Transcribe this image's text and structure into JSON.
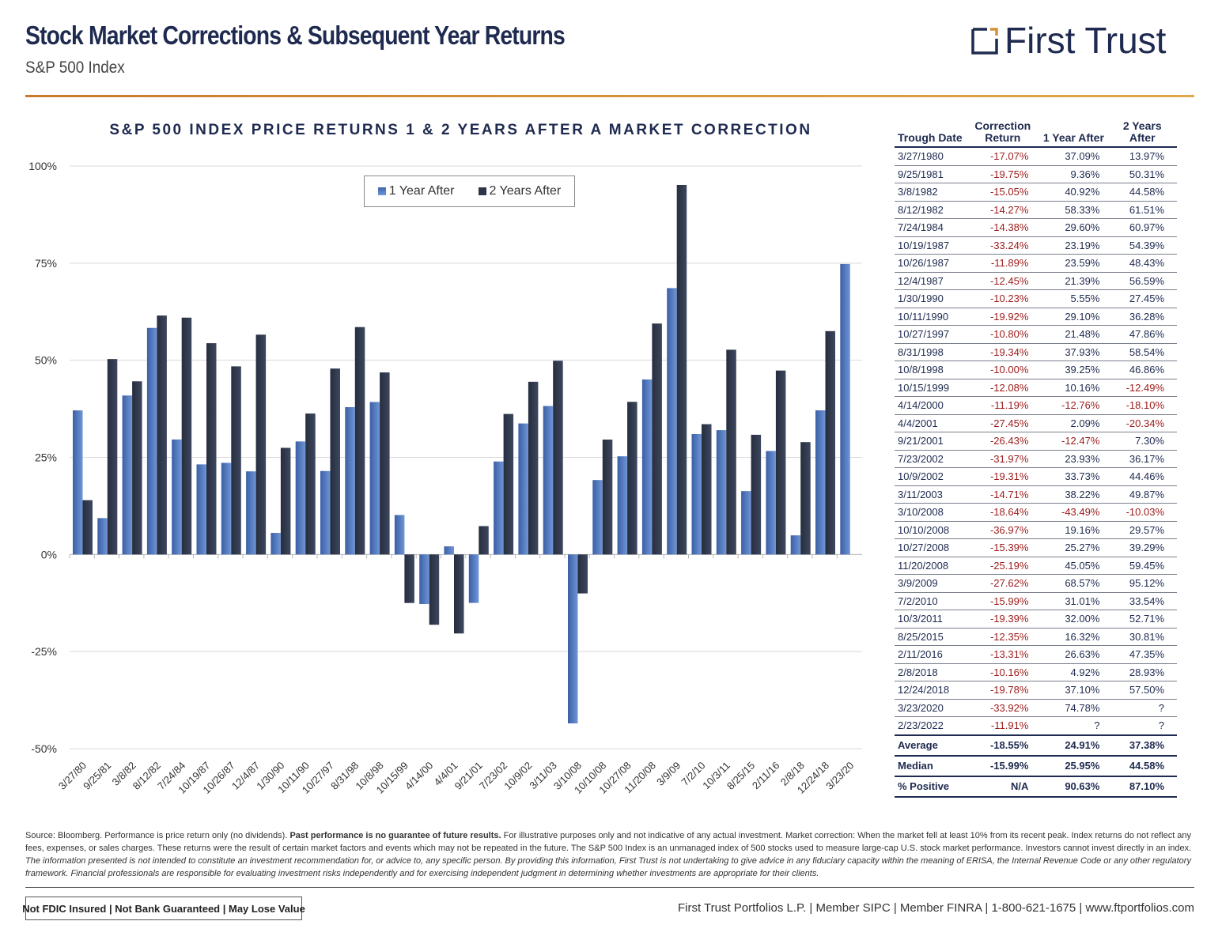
{
  "header": {
    "title": "Stock Market Corrections & Subsequent Year Returns",
    "subtitle": "S&P 500 Index",
    "logo_text": "First Trust"
  },
  "colors": {
    "navy": "#1e2a4f",
    "accent": "#d4913a",
    "one_year": "#4a6fb5",
    "two_year": "#2c3447",
    "negative": "#9c1a1a"
  },
  "chart_data": {
    "type": "bar",
    "title": "S&P 500 INDEX PRICE RETURNS 1 & 2 YEARS AFTER A MARKET CORRECTION",
    "categories": [
      "3/27/80",
      "9/25/81",
      "3/8/82",
      "8/12/82",
      "7/24/84",
      "10/19/87",
      "10/26/87",
      "12/4/87",
      "1/30/90",
      "10/11/90",
      "10/27/97",
      "8/31/98",
      "10/8/98",
      "10/15/99",
      "4/14/00",
      "4/4/01",
      "9/21/01",
      "7/23/02",
      "10/9/02",
      "3/11/03",
      "3/10/08",
      "10/10/08",
      "10/27/08",
      "11/20/08",
      "3/9/09",
      "7/2/10",
      "10/3/11",
      "8/25/15",
      "2/11/16",
      "2/8/18",
      "12/24/18",
      "3/23/20"
    ],
    "series": [
      {
        "name": "1 Year After",
        "values": [
          37.09,
          9.36,
          40.92,
          58.33,
          29.6,
          23.19,
          23.59,
          21.39,
          5.55,
          29.1,
          21.48,
          37.93,
          39.25,
          10.16,
          -12.76,
          2.09,
          -12.47,
          23.93,
          33.73,
          38.22,
          -43.49,
          19.16,
          25.27,
          45.05,
          68.57,
          31.01,
          32.0,
          16.32,
          26.63,
          4.92,
          37.1,
          74.78
        ]
      },
      {
        "name": "2 Years After",
        "values": [
          13.97,
          50.31,
          44.58,
          61.51,
          60.97,
          54.39,
          48.43,
          56.59,
          27.45,
          36.28,
          47.86,
          58.54,
          46.86,
          -12.49,
          -18.1,
          -20.34,
          7.3,
          36.17,
          44.46,
          49.87,
          -10.03,
          29.57,
          39.29,
          59.45,
          95.12,
          33.54,
          52.71,
          30.81,
          47.35,
          28.93,
          57.5,
          null
        ]
      }
    ],
    "yticks": [
      "100%",
      "75%",
      "50%",
      "25%",
      "0%",
      "-25%",
      "-50%"
    ],
    "ylim": [
      -50,
      100
    ],
    "grid": true,
    "legend": "top-left"
  },
  "table": {
    "headers": [
      "Trough Date",
      "Correction Return",
      "1 Year After",
      "2 Years After"
    ],
    "rows": [
      [
        "3/27/1980",
        "-17.07%",
        "37.09%",
        "13.97%"
      ],
      [
        "9/25/1981",
        "-19.75%",
        "9.36%",
        "50.31%"
      ],
      [
        "3/8/1982",
        "-15.05%",
        "40.92%",
        "44.58%"
      ],
      [
        "8/12/1982",
        "-14.27%",
        "58.33%",
        "61.51%"
      ],
      [
        "7/24/1984",
        "-14.38%",
        "29.60%",
        "60.97%"
      ],
      [
        "10/19/1987",
        "-33.24%",
        "23.19%",
        "54.39%"
      ],
      [
        "10/26/1987",
        "-11.89%",
        "23.59%",
        "48.43%"
      ],
      [
        "12/4/1987",
        "-12.45%",
        "21.39%",
        "56.59%"
      ],
      [
        "1/30/1990",
        "-10.23%",
        "5.55%",
        "27.45%"
      ],
      [
        "10/11/1990",
        "-19.92%",
        "29.10%",
        "36.28%"
      ],
      [
        "10/27/1997",
        "-10.80%",
        "21.48%",
        "47.86%"
      ],
      [
        "8/31/1998",
        "-19.34%",
        "37.93%",
        "58.54%"
      ],
      [
        "10/8/1998",
        "-10.00%",
        "39.25%",
        "46.86%"
      ],
      [
        "10/15/1999",
        "-12.08%",
        "10.16%",
        "-12.49%"
      ],
      [
        "4/14/2000",
        "-11.19%",
        "-12.76%",
        "-18.10%"
      ],
      [
        "4/4/2001",
        "-27.45%",
        "2.09%",
        "-20.34%"
      ],
      [
        "9/21/2001",
        "-26.43%",
        "-12.47%",
        "7.30%"
      ],
      [
        "7/23/2002",
        "-31.97%",
        "23.93%",
        "36.17%"
      ],
      [
        "10/9/2002",
        "-19.31%",
        "33.73%",
        "44.46%"
      ],
      [
        "3/11/2003",
        "-14.71%",
        "38.22%",
        "49.87%"
      ],
      [
        "3/10/2008",
        "-18.64%",
        "-43.49%",
        "-10.03%"
      ],
      [
        "10/10/2008",
        "-36.97%",
        "19.16%",
        "29.57%"
      ],
      [
        "10/27/2008",
        "-15.39%",
        "25.27%",
        "39.29%"
      ],
      [
        "11/20/2008",
        "-25.19%",
        "45.05%",
        "59.45%"
      ],
      [
        "3/9/2009",
        "-27.62%",
        "68.57%",
        "95.12%"
      ],
      [
        "7/2/2010",
        "-15.99%",
        "31.01%",
        "33.54%"
      ],
      [
        "10/3/2011",
        "-19.39%",
        "32.00%",
        "52.71%"
      ],
      [
        "8/25/2015",
        "-12.35%",
        "16.32%",
        "30.81%"
      ],
      [
        "2/11/2016",
        "-13.31%",
        "26.63%",
        "47.35%"
      ],
      [
        "2/8/2018",
        "-10.16%",
        "4.92%",
        "28.93%"
      ],
      [
        "12/24/2018",
        "-19.78%",
        "37.10%",
        "57.50%"
      ],
      [
        "3/23/2020",
        "-33.92%",
        "74.78%",
        "?"
      ],
      [
        "2/23/2022",
        "-11.91%",
        "?",
        "?"
      ]
    ],
    "summary": [
      [
        "Average",
        "-18.55%",
        "24.91%",
        "37.38%"
      ],
      [
        "Median",
        "-15.99%",
        "25.95%",
        "44.58%"
      ],
      [
        "% Positive",
        "N/A",
        "90.63%",
        "87.10%"
      ]
    ]
  },
  "footnote": {
    "p1_a": "Source: Bloomberg. Performance is price return only (no dividends). ",
    "p1_bold": "Past performance is no guarantee of future results.",
    "p1_b": " For illustrative purposes only and not indicative of any actual investment. Market correction: When the market fell at least 10% from its recent peak. Index returns do not reflect any fees, expenses, or sales charges. These returns were the result of certain market factors and events which may not be repeated in the future. The S&P 500 Index is an unmanaged index of 500 stocks used to measure large-cap U.S. stock market performance. Investors cannot invest directly in an index.",
    "p2": "The information presented is not intended to constitute an investment recommendation for, or advice to, any specific person. By providing this information, First Trust is not undertaking to give advice in any fiduciary capacity within the meaning of ERISA, the Internal Revenue Code or any other regulatory framework. Financial professionals are responsible for evaluating investment risks independently and for exercising independent judgment in determining whether investments are appropriate for their clients."
  },
  "footer": {
    "badge": "Not FDIC Insured | Not Bank Guaranteed | May Lose Value",
    "contact": "First Trust Portfolios L.P. | Member SIPC | Member FINRA | 1-800-621-1675 | www.ftportfolios.com"
  }
}
